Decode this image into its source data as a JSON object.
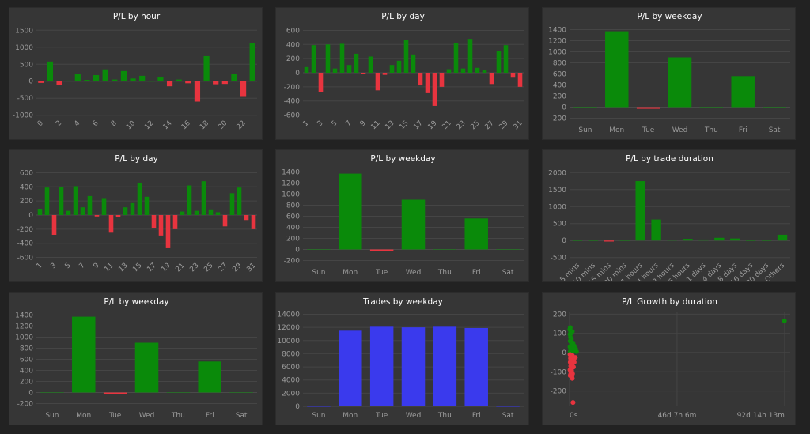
{
  "colors": {
    "positive": "#0a8a0a",
    "negative": "#e8343f",
    "trades": "#3a3aed"
  },
  "chart_data": [
    {
      "id": "hour",
      "type": "bar",
      "title": "P/L by hour",
      "categories": [
        "0",
        "1",
        "2",
        "3",
        "4",
        "5",
        "6",
        "7",
        "8",
        "9",
        "10",
        "11",
        "12",
        "13",
        "14",
        "15",
        "16",
        "17",
        "18",
        "19",
        "20",
        "21",
        "22",
        "23"
      ],
      "tick_labels": [
        "0",
        "2",
        "4",
        "6",
        "8",
        "10",
        "12",
        "14",
        "16",
        "18",
        "20",
        "22"
      ],
      "values": [
        -50,
        580,
        -110,
        20,
        210,
        40,
        180,
        350,
        50,
        300,
        80,
        160,
        0,
        110,
        -150,
        50,
        -60,
        -600,
        740,
        -90,
        -80,
        210,
        -460,
        1130
      ],
      "ylim": [
        -1100,
        1600
      ],
      "yticks": [
        -1000,
        -500,
        0,
        500,
        1000,
        1500
      ],
      "rotate": true
    },
    {
      "id": "day1",
      "type": "bar",
      "title": "P/L by day",
      "categories": [
        "1",
        "2",
        "3",
        "4",
        "5",
        "6",
        "7",
        "8",
        "9",
        "10",
        "11",
        "12",
        "13",
        "14",
        "15",
        "16",
        "17",
        "18",
        "19",
        "20",
        "21",
        "22",
        "23",
        "24",
        "25",
        "26",
        "27",
        "28",
        "29",
        "30",
        "31"
      ],
      "tick_labels": [
        "1",
        "3",
        "5",
        "7",
        "9",
        "11",
        "13",
        "15",
        "17",
        "19",
        "21",
        "23",
        "25",
        "27",
        "29",
        "31"
      ],
      "values": [
        80,
        390,
        -280,
        400,
        60,
        410,
        110,
        270,
        -20,
        230,
        -250,
        -30,
        110,
        170,
        460,
        260,
        -180,
        -290,
        -470,
        -200,
        50,
        420,
        60,
        480,
        70,
        40,
        -160,
        310,
        390,
        -70,
        -200
      ],
      "ylim": [
        -650,
        650
      ],
      "yticks": [
        -600,
        -400,
        -200,
        0,
        200,
        400,
        600
      ],
      "rotate": true
    },
    {
      "id": "weekday1",
      "type": "bar",
      "title": "P/L by weekday",
      "categories": [
        "Sun",
        "Mon",
        "Tue",
        "Wed",
        "Thu",
        "Fri",
        "Sat"
      ],
      "tick_labels": [
        "Sun",
        "Mon",
        "Tue",
        "Wed",
        "Thu",
        "Fri",
        "Sat"
      ],
      "values": [
        0,
        1370,
        -30,
        900,
        5,
        560,
        0
      ],
      "ylim": [
        -250,
        1450
      ],
      "yticks": [
        -200,
        0,
        200,
        400,
        600,
        800,
        1000,
        1200,
        1400
      ],
      "rotate": false
    },
    {
      "id": "day2",
      "type": "bar",
      "title": "P/L by day",
      "categories": [
        "1",
        "2",
        "3",
        "4",
        "5",
        "6",
        "7",
        "8",
        "9",
        "10",
        "11",
        "12",
        "13",
        "14",
        "15",
        "16",
        "17",
        "18",
        "19",
        "20",
        "21",
        "22",
        "23",
        "24",
        "25",
        "26",
        "27",
        "28",
        "29",
        "30",
        "31"
      ],
      "tick_labels": [
        "1",
        "3",
        "5",
        "7",
        "9",
        "11",
        "13",
        "15",
        "17",
        "19",
        "21",
        "23",
        "25",
        "27",
        "29",
        "31"
      ],
      "values": [
        80,
        390,
        -280,
        400,
        60,
        410,
        110,
        270,
        -20,
        230,
        -250,
        -30,
        110,
        170,
        460,
        260,
        -180,
        -290,
        -470,
        -200,
        50,
        420,
        60,
        480,
        70,
        40,
        -160,
        310,
        390,
        -70,
        -200
      ],
      "ylim": [
        -650,
        650
      ],
      "yticks": [
        -600,
        -400,
        -200,
        0,
        200,
        400,
        600
      ],
      "rotate": true
    },
    {
      "id": "weekday2",
      "type": "bar",
      "title": "P/L by weekday",
      "categories": [
        "Sun",
        "Mon",
        "Tue",
        "Wed",
        "Thu",
        "Fri",
        "Sat"
      ],
      "tick_labels": [
        "Sun",
        "Mon",
        "Tue",
        "Wed",
        "Thu",
        "Fri",
        "Sat"
      ],
      "values": [
        0,
        1370,
        -30,
        900,
        5,
        560,
        0
      ],
      "ylim": [
        -250,
        1450
      ],
      "yticks": [
        -200,
        0,
        200,
        400,
        600,
        800,
        1000,
        1200,
        1400
      ],
      "rotate": false
    },
    {
      "id": "duration",
      "type": "bar",
      "title": "P/L by trade duration",
      "categories": [
        "5 mins",
        "10 mins",
        "15 mins",
        "30 mins",
        "1 hours",
        "4 hours",
        "8 hours",
        "16 hours",
        "1 days",
        "4 days",
        "8 days",
        "16 days",
        "30 days",
        "Others"
      ],
      "tick_labels": [
        "5 mins",
        "10 mins",
        "15 mins",
        "30 mins",
        "1 hours",
        "4 hours",
        "8 hours",
        "16 hours",
        "1 days",
        "4 days",
        "8 days",
        "16 days",
        "30 days",
        "Others"
      ],
      "values": [
        0,
        0,
        -30,
        0,
        1750,
        620,
        20,
        50,
        30,
        80,
        60,
        0,
        0,
        170
      ],
      "ylim": [
        -600,
        2100
      ],
      "yticks": [
        -500,
        0,
        500,
        1000,
        1500,
        2000
      ],
      "rotate": true
    },
    {
      "id": "weekday3",
      "type": "bar",
      "title": "P/L by weekday",
      "categories": [
        "Sun",
        "Mon",
        "Tue",
        "Wed",
        "Thu",
        "Fri",
        "Sat"
      ],
      "tick_labels": [
        "Sun",
        "Mon",
        "Tue",
        "Wed",
        "Thu",
        "Fri",
        "Sat"
      ],
      "values": [
        0,
        1370,
        -30,
        900,
        5,
        560,
        0
      ],
      "ylim": [
        -250,
        1450
      ],
      "yticks": [
        -200,
        0,
        200,
        400,
        600,
        800,
        1000,
        1200,
        1400
      ],
      "rotate": false
    },
    {
      "id": "trades",
      "type": "bar",
      "title": "Trades by weekday",
      "categories": [
        "Sun",
        "Mon",
        "Tue",
        "Wed",
        "Thu",
        "Fri",
        "Sat"
      ],
      "tick_labels": [
        "Sun",
        "Mon",
        "Tue",
        "Wed",
        "Thu",
        "Fri",
        "Sat"
      ],
      "values": [
        0,
        11500,
        12100,
        12000,
        12100,
        11900,
        0
      ],
      "ylim": [
        0,
        14300
      ],
      "yticks": [
        0,
        2000,
        4000,
        6000,
        8000,
        10000,
        12000,
        14000
      ],
      "rotate": false,
      "single_color": true
    },
    {
      "id": "growth",
      "type": "scatter",
      "title": "P/L Growth by duration",
      "x_tick_labels": [
        "0s",
        "46d 7h 6m",
        "92d 14h 13m"
      ],
      "xlim_days": [
        0,
        95
      ],
      "ylim": [
        -280,
        210
      ],
      "yticks": [
        -200,
        -100,
        0,
        100,
        200
      ],
      "points": [
        [
          0.3,
          130
        ],
        [
          0.5,
          110
        ],
        [
          0.2,
          95
        ],
        [
          1.2,
          110
        ],
        [
          0.4,
          80
        ],
        [
          0.8,
          70
        ],
        [
          0.3,
          60
        ],
        [
          0.6,
          55
        ],
        [
          1.5,
          50
        ],
        [
          0.9,
          40
        ],
        [
          2.0,
          35
        ],
        [
          0.2,
          30
        ],
        [
          1.1,
          25
        ],
        [
          2.6,
          20
        ],
        [
          0.5,
          15
        ],
        [
          1.8,
          10
        ],
        [
          3.0,
          5
        ],
        [
          0.3,
          5
        ],
        [
          1.3,
          45
        ],
        [
          0.7,
          65
        ],
        [
          1.9,
          30
        ],
        [
          2.4,
          15
        ],
        [
          0.1,
          120
        ],
        [
          0.6,
          100
        ],
        [
          0.2,
          -10
        ],
        [
          0.6,
          -20
        ],
        [
          1.2,
          -15
        ],
        [
          0.4,
          -30
        ],
        [
          0.9,
          -40
        ],
        [
          1.6,
          -35
        ],
        [
          0.3,
          -50
        ],
        [
          0.8,
          -60
        ],
        [
          1.4,
          -55
        ],
        [
          0.5,
          -70
        ],
        [
          1.1,
          -80
        ],
        [
          0.2,
          -90
        ],
        [
          0.7,
          -100
        ],
        [
          1.3,
          -110
        ],
        [
          0.4,
          -115
        ],
        [
          0.9,
          -95
        ],
        [
          1.7,
          -75
        ],
        [
          0.3,
          -120
        ],
        [
          1.2,
          -135
        ],
        [
          2.0,
          -50
        ],
        [
          2.5,
          -25
        ],
        [
          1.5,
          -260
        ],
        [
          0.6,
          -105
        ],
        [
          1.0,
          -125
        ],
        [
          92.5,
          165
        ]
      ]
    }
  ]
}
